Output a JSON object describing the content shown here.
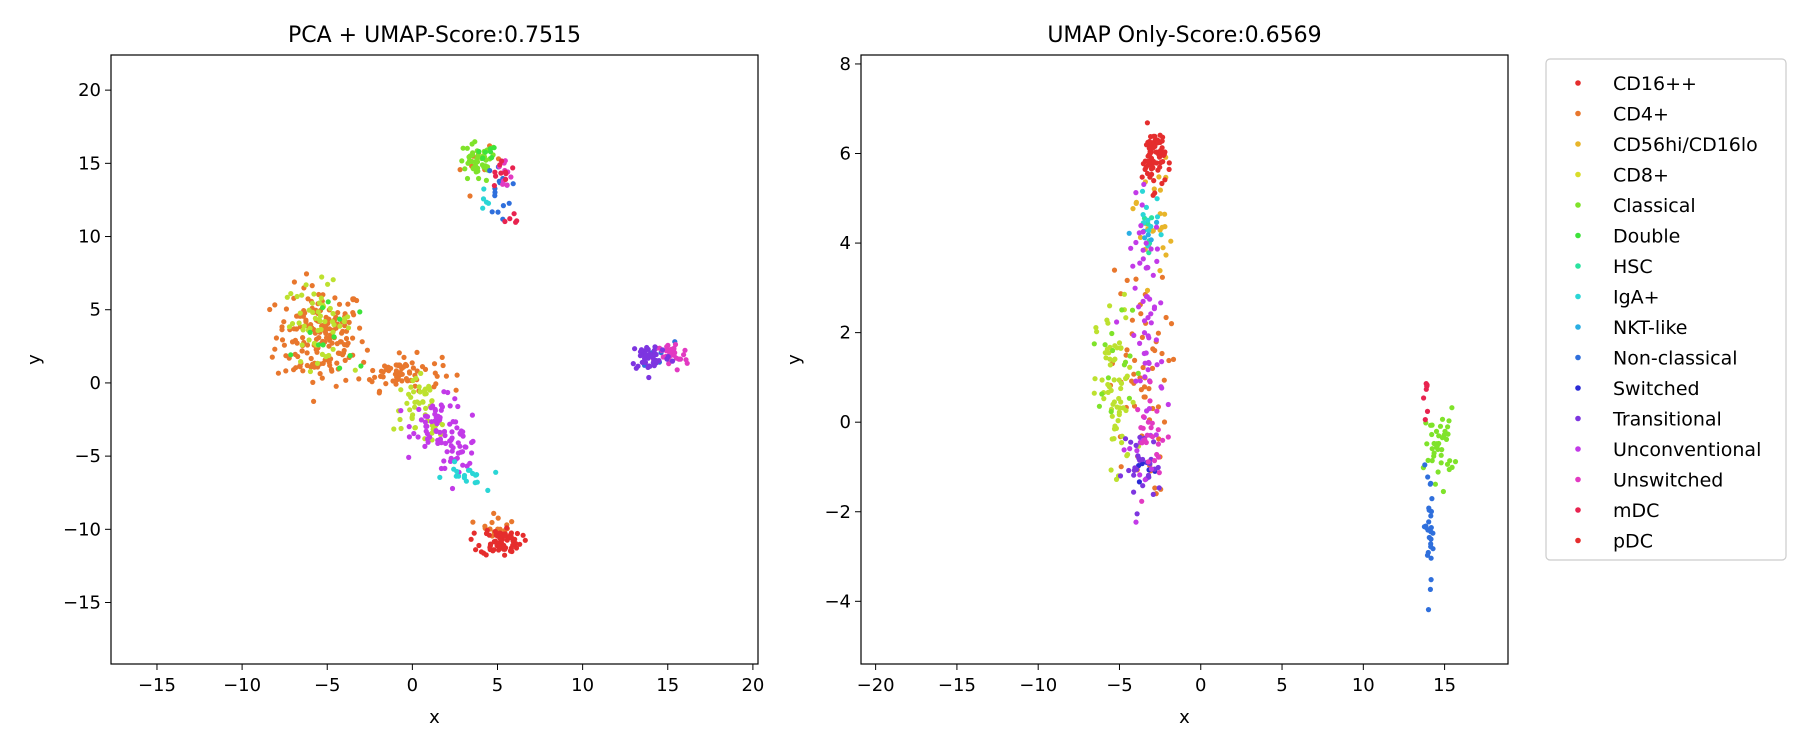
{
  "chart_data": [
    {
      "type": "scatter",
      "title": "PCA + UMAP-Score:0.7515",
      "xlabel": "x",
      "ylabel": "y",
      "xlim": [
        -17.7,
        20.3
      ],
      "ylim": [
        -19.2,
        22.4
      ],
      "xticks": [
        -15,
        -10,
        -5,
        0,
        5,
        10,
        15,
        20
      ],
      "yticks": [
        -15,
        -10,
        -5,
        0,
        5,
        10,
        15,
        20
      ],
      "grid": false,
      "series": [
        {
          "name": "CD4+",
          "color": "#e8772d",
          "clusters": [
            {
              "cx": -5.4,
              "cy": 3.2,
              "sx": 1.3,
              "sy": 1.7,
              "n": 170
            },
            {
              "cx": -0.7,
              "cy": 0.7,
              "sx": 1.2,
              "sy": 0.6,
              "n": 70
            },
            {
              "cx": 5.0,
              "cy": -9.6,
              "sx": 0.5,
              "sy": 0.4,
              "n": 15
            },
            {
              "cx": 4.0,
              "cy": 14.8,
              "sx": 0.6,
              "sy": 0.6,
              "n": 8
            }
          ]
        },
        {
          "name": "CD8+",
          "color": "#bde12f",
          "clusters": [
            {
              "cx": -5.6,
              "cy": 4.2,
              "sx": 1.0,
              "sy": 1.3,
              "n": 55
            },
            {
              "cx": 0.3,
              "cy": -1.3,
              "sx": 0.7,
              "sy": 1.0,
              "n": 35
            },
            {
              "cx": 1.2,
              "cy": -3.0,
              "sx": 0.5,
              "sy": 0.8,
              "n": 15
            }
          ]
        },
        {
          "name": "Classical",
          "color": "#7fe32a",
          "clusters": [
            {
              "cx": 3.8,
              "cy": 15.0,
              "sx": 0.6,
              "sy": 0.7,
              "n": 45
            }
          ]
        },
        {
          "name": "Double",
          "color": "#3de33a",
          "clusters": [
            {
              "cx": -4.5,
              "cy": 3.0,
              "sx": 1.0,
              "sy": 1.2,
              "n": 12
            },
            {
              "cx": 4.2,
              "cy": 15.5,
              "sx": 0.4,
              "sy": 0.4,
              "n": 8
            }
          ]
        },
        {
          "name": "Unconventional",
          "color": "#c23ae8",
          "clusters": [
            {
              "cx": 1.6,
              "cy": -2.8,
              "sx": 0.8,
              "sy": 0.9,
              "n": 60
            },
            {
              "cx": 2.7,
              "cy": -4.4,
              "sx": 0.6,
              "sy": 0.7,
              "n": 35
            }
          ]
        },
        {
          "name": "IgA+",
          "color": "#2ad6d6",
          "clusters": [
            {
              "cx": 3.0,
              "cy": -6.5,
              "sx": 0.6,
              "sy": 0.5,
              "n": 18
            },
            {
              "cx": 4.3,
              "cy": 12.5,
              "sx": 0.2,
              "sy": 0.5,
              "n": 5
            }
          ]
        },
        {
          "name": "Non-classical",
          "color": "#2f6fdc",
          "clusters": [
            {
              "cx": 5.1,
              "cy": 13.2,
              "sx": 0.35,
              "sy": 0.9,
              "n": 15
            },
            {
              "cx": 14.2,
              "cy": 1.8,
              "sx": 0.6,
              "sy": 0.5,
              "n": 8
            }
          ]
        },
        {
          "name": "Unswitched",
          "color": "#e23ac2",
          "clusters": [
            {
              "cx": 5.4,
              "cy": 14.2,
              "sx": 0.3,
              "sy": 0.6,
              "n": 10
            },
            {
              "cx": 15.2,
              "cy": 1.8,
              "sx": 0.5,
              "sy": 0.5,
              "n": 35
            }
          ]
        },
        {
          "name": "Transitional",
          "color": "#7d35e0",
          "clusters": [
            {
              "cx": 14.0,
              "cy": 1.8,
              "sx": 0.6,
              "sy": 0.5,
              "n": 45
            }
          ]
        },
        {
          "name": "mDC",
          "color": "#e8234f",
          "clusters": [
            {
              "cx": 5.3,
              "cy": 14.3,
              "sx": 0.4,
              "sy": 0.5,
              "n": 10
            },
            {
              "cx": 6.0,
              "cy": 11.0,
              "sx": 0.3,
              "sy": 0.3,
              "n": 5
            }
          ]
        },
        {
          "name": "pDC",
          "color": "#e52d2d",
          "clusters": [
            {
              "cx": 5.2,
              "cy": -10.8,
              "sx": 0.6,
              "sy": 0.5,
              "n": 75
            }
          ]
        }
      ]
    },
    {
      "type": "scatter",
      "title": "UMAP Only-Score:0.6569",
      "xlabel": "x",
      "ylabel": "y",
      "xlim": [
        -20.9,
        18.9
      ],
      "ylim": [
        -5.4,
        8.2
      ],
      "xticks": [
        -20,
        -15,
        -10,
        -5,
        0,
        5,
        10,
        15
      ],
      "yticks": [
        -4,
        -2,
        0,
        2,
        4,
        6,
        8
      ],
      "grid": false,
      "series": [
        {
          "name": "CD4+",
          "color": "#e8772d",
          "clusters": [
            {
              "cx": -3.8,
              "cy": 0.9,
              "sx": 0.9,
              "sy": 1.3,
              "n": 60
            }
          ]
        },
        {
          "name": "CD56hi/CD16lo",
          "color": "#e8b52a",
          "clusters": [
            {
              "cx": -3.0,
              "cy": 4.5,
              "sx": 0.6,
              "sy": 0.7,
              "n": 25
            }
          ]
        },
        {
          "name": "CD8+",
          "color": "#bde12f",
          "clusters": [
            {
              "cx": -5.2,
              "cy": 0.5,
              "sx": 0.6,
              "sy": 1.1,
              "n": 65
            }
          ]
        },
        {
          "name": "Classical",
          "color": "#7fe32a",
          "clusters": [
            {
              "cx": 14.7,
              "cy": -0.5,
              "sx": 0.45,
              "sy": 0.4,
              "n": 40
            },
            {
              "cx": -5.0,
              "cy": 1.5,
              "sx": 0.8,
              "sy": 0.6,
              "n": 15
            }
          ]
        },
        {
          "name": "HSC",
          "color": "#2ae3a0",
          "clusters": [
            {
              "cx": -3.3,
              "cy": 4.3,
              "sx": 0.3,
              "sy": 0.3,
              "n": 6
            }
          ]
        },
        {
          "name": "IgA+",
          "color": "#2ad6d6",
          "clusters": [
            {
              "cx": -3.3,
              "cy": 4.5,
              "sx": 0.4,
              "sy": 0.3,
              "n": 12
            }
          ]
        },
        {
          "name": "NKT-like",
          "color": "#2aaee3",
          "clusters": [
            {
              "cx": -3.5,
              "cy": 4.1,
              "sx": 0.3,
              "sy": 0.3,
              "n": 6
            }
          ]
        },
        {
          "name": "Non-classical",
          "color": "#2f6fdc",
          "clusters": [
            {
              "cx": 14.1,
              "cy": -2.3,
              "sx": 0.2,
              "sy": 0.6,
              "n": 28
            }
          ]
        },
        {
          "name": "Switched",
          "color": "#2a2ad6",
          "clusters": [
            {
              "cx": -3.5,
              "cy": -1.2,
              "sx": 0.4,
              "sy": 0.3,
              "n": 6
            }
          ]
        },
        {
          "name": "Transitional",
          "color": "#7d35e0",
          "clusters": [
            {
              "cx": -3.6,
              "cy": -1.0,
              "sx": 0.6,
              "sy": 0.4,
              "n": 30
            }
          ]
        },
        {
          "name": "Unconventional",
          "color": "#c23ae8",
          "clusters": [
            {
              "cx": -3.3,
              "cy": 2.0,
              "sx": 0.5,
              "sy": 1.5,
              "n": 70
            }
          ]
        },
        {
          "name": "Unswitched",
          "color": "#e23ac2",
          "clusters": [
            {
              "cx": -3.0,
              "cy": -0.3,
              "sx": 0.5,
              "sy": 0.5,
              "n": 25
            }
          ]
        },
        {
          "name": "mDC",
          "color": "#e8234f",
          "clusters": [
            {
              "cx": 13.9,
              "cy": 0.6,
              "sx": 0.08,
              "sy": 0.25,
              "n": 8
            }
          ]
        },
        {
          "name": "pDC",
          "color": "#e52d2d",
          "clusters": [
            {
              "cx": -2.9,
              "cy": 5.9,
              "sx": 0.35,
              "sy": 0.35,
              "n": 70
            }
          ]
        }
      ]
    }
  ],
  "legend": {
    "placement": "outside-right",
    "entries": [
      {
        "label": "CD16++",
        "color": "#e52d2d"
      },
      {
        "label": "CD4+",
        "color": "#e8772d"
      },
      {
        "label": "CD56hi/CD16lo",
        "color": "#e8b52a"
      },
      {
        "label": "CD8+",
        "color": "#d9dd2a"
      },
      {
        "label": "Classical",
        "color": "#7fe32a"
      },
      {
        "label": "Double",
        "color": "#3de33a"
      },
      {
        "label": "HSC",
        "color": "#2ae3a0"
      },
      {
        "label": "IgA+",
        "color": "#2ad6d6"
      },
      {
        "label": "NKT-like",
        "color": "#2aaee3"
      },
      {
        "label": "Non-classical",
        "color": "#2f6fdc"
      },
      {
        "label": "Switched",
        "color": "#2a2ad6"
      },
      {
        "label": "Transitional",
        "color": "#7d35e0"
      },
      {
        "label": "Unconventional",
        "color": "#c23ae8"
      },
      {
        "label": "Unswitched",
        "color": "#e23ac2"
      },
      {
        "label": "mDC",
        "color": "#e8234f"
      },
      {
        "label": "pDC",
        "color": "#e52d2d"
      }
    ]
  }
}
